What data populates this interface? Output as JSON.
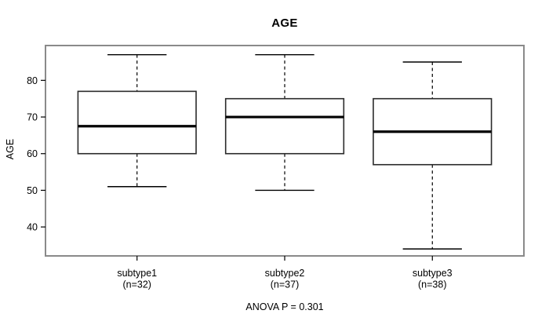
{
  "chart_data": {
    "type": "boxplot",
    "title": "AGE",
    "ylabel": "AGE",
    "annotation": "ANOVA P = 0.301",
    "ylim": [
      32.1,
      89.5
    ],
    "yticks": [
      40,
      50,
      60,
      70,
      80
    ],
    "grid": false,
    "groups": [
      {
        "label": "subtype1",
        "n_label": "(n=32)",
        "n": 32,
        "whisker_low": 51,
        "q1": 60,
        "median": 67.5,
        "q3": 77,
        "whisker_high": 87
      },
      {
        "label": "subtype2",
        "n_label": "(n=37)",
        "n": 37,
        "whisker_low": 50,
        "q1": 60,
        "median": 70,
        "q3": 75,
        "whisker_high": 87
      },
      {
        "label": "subtype3",
        "n_label": "(n=38)",
        "n": 38,
        "whisker_low": 34,
        "q1": 57,
        "median": 66,
        "q3": 75,
        "whisker_high": 85
      }
    ],
    "colors": {
      "background": "#ffffff",
      "plot_border": "#8a8a8a",
      "box_border": "#2b2b2b",
      "box_fill": "#ffffff",
      "median": "#000000",
      "whisker": "#000000",
      "tick": "#000000",
      "text": "#000000"
    }
  }
}
